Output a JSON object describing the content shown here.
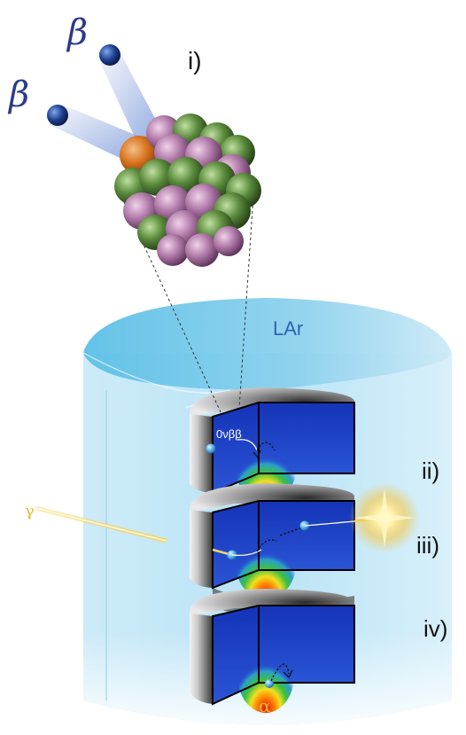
{
  "labels": {
    "beta_upper": "β",
    "beta_lower": "β",
    "panel_i": "i)",
    "panel_ii": "ii)",
    "panel_iii": "iii)",
    "panel_iv": "iv)",
    "lar": "LAr",
    "onbb": "0νββ",
    "gamma": "γ",
    "alpha": "α"
  },
  "colors": {
    "beta_label": "#2b3a8c",
    "electron": "#1f3f8f",
    "proton": "#b07aa8",
    "neutron": "#5a8a3c",
    "emitted_nucleon": "#d9741f",
    "lar_label": "#2f64b0",
    "cylinder_top": "#6fc6e8",
    "cylinder_body": "#bfe6f6",
    "detector_face": "#1f3fc0",
    "gamma_label": "#e8b830",
    "alpha_label": "#e8b830",
    "gamma_track": "#f3d46a"
  }
}
